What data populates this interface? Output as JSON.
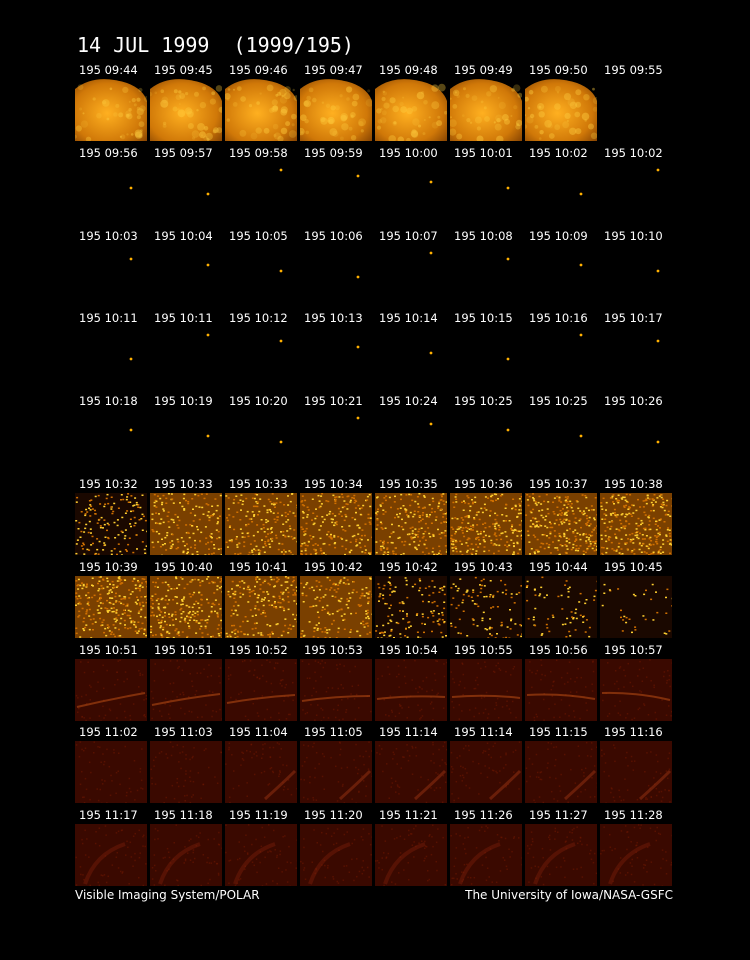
{
  "title": "14 JUL 1999  (1999/195)",
  "footer_left": "Visible Imaging System/POLAR",
  "footer_right": "The University of Iowa/NASA-GSFC",
  "rows": [
    {
      "kind": "earth",
      "labels": [
        "195 09:44",
        "195 09:45",
        "195 09:46",
        "195 09:47",
        "195 09:48",
        "195 09:49",
        "195 09:50",
        "195 09:55"
      ],
      "blank_last": true
    },
    {
      "kind": "dot",
      "labels": [
        "195 09:56",
        "195 09:57",
        "195 09:58",
        "195 09:59",
        "195 10:00",
        "195 10:01",
        "195 10:02",
        "195 10:02"
      ]
    },
    {
      "kind": "dot",
      "labels": [
        "195 10:03",
        "195 10:04",
        "195 10:05",
        "195 10:06",
        "195 10:07",
        "195 10:08",
        "195 10:09",
        "195 10:10"
      ]
    },
    {
      "kind": "dot",
      "labels": [
        "195 10:11",
        "195 10:11",
        "195 10:12",
        "195 10:13",
        "195 10:14",
        "195 10:15",
        "195 10:16",
        "195 10:17"
      ]
    },
    {
      "kind": "dot",
      "labels": [
        "195 10:18",
        "195 10:19",
        "195 10:20",
        "195 10:21",
        "195 10:24",
        "195 10:25",
        "195 10:25",
        "195 10:26"
      ]
    },
    {
      "kind": "noise",
      "labels": [
        "195 10:32",
        "195 10:33",
        "195 10:33",
        "195 10:34",
        "195 10:35",
        "195 10:36",
        "195 10:37",
        "195 10:38"
      ]
    },
    {
      "kind": "noise2",
      "labels": [
        "195 10:39",
        "195 10:40",
        "195 10:41",
        "195 10:42",
        "195 10:42",
        "195 10:43",
        "195 10:44",
        "195 10:45"
      ]
    },
    {
      "kind": "red",
      "labels": [
        "195 10:51",
        "195 10:51",
        "195 10:52",
        "195 10:53",
        "195 10:54",
        "195 10:55",
        "195 10:56",
        "195 10:57"
      ]
    },
    {
      "kind": "red",
      "labels": [
        "195 11:02",
        "195 11:03",
        "195 11:04",
        "195 11:05",
        "195 11:14",
        "195 11:14",
        "195 11:15",
        "195 11:16"
      ]
    },
    {
      "kind": "red",
      "labels": [
        "195 11:17",
        "195 11:18",
        "195 11:19",
        "195 11:20",
        "195 11:21",
        "195 11:26",
        "195 11:27",
        "195 11:28"
      ]
    }
  ],
  "colors": {
    "earth": "#d98a10",
    "dot": "#ffb000",
    "noise": "#e0a020",
    "red": "#4a0c00"
  }
}
